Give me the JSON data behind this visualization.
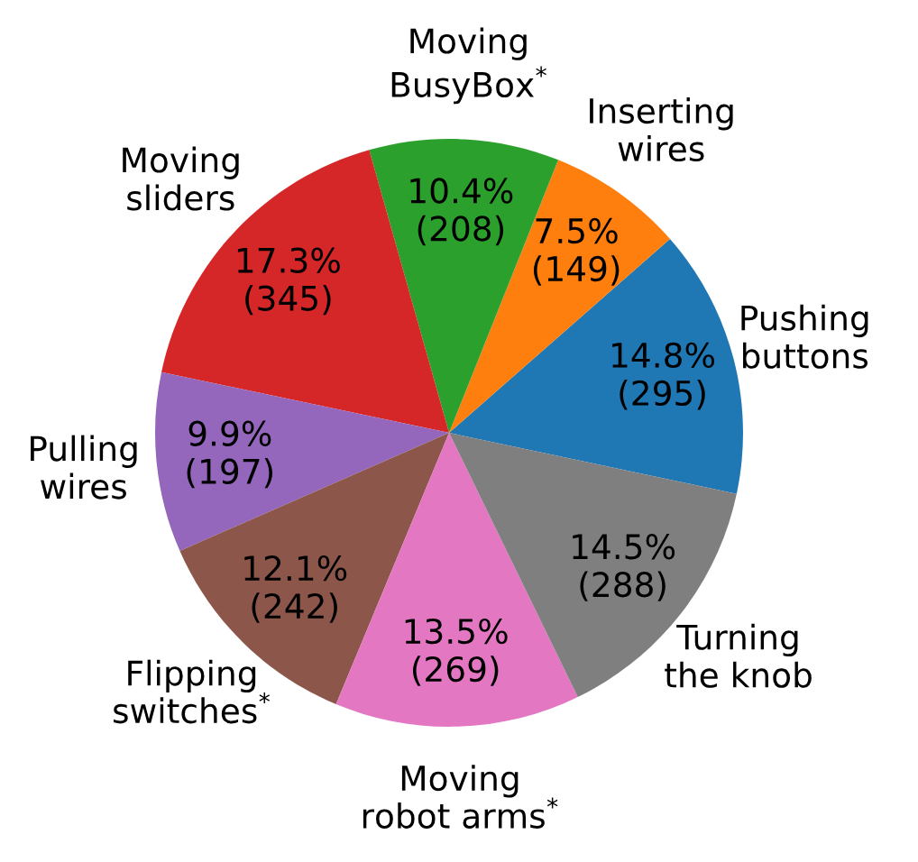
{
  "chart_data": {
    "type": "pie",
    "categories": [
      "Pushing\nbuttons",
      "Inserting\nwires",
      "Moving\nBusyBox$^{*}$",
      "Moving\nsliders",
      "Pulling\nwires",
      "Flipping\nswitches$^{*}$",
      "Moving\nrobot arms$^{*}$",
      "Turning\nthe knob"
    ],
    "values": [
      295,
      149,
      208,
      345,
      197,
      242,
      269,
      288
    ],
    "colors": [
      "#1f77b4",
      "#ff7f0e",
      "#2ca02c",
      "#d62728",
      "#9467bd",
      "#8c564b",
      "#e377c2",
      "#7f7f7f"
    ],
    "value_labels": [
      "14.8%\n(295)",
      "7.5%\n(149)",
      "10.4%\n(208)",
      "17.3%\n(345)",
      "9.9%\n(197)",
      "12.1%\n(242)",
      "13.5%\n(269)",
      "14.5%\n(288)"
    ]
  }
}
